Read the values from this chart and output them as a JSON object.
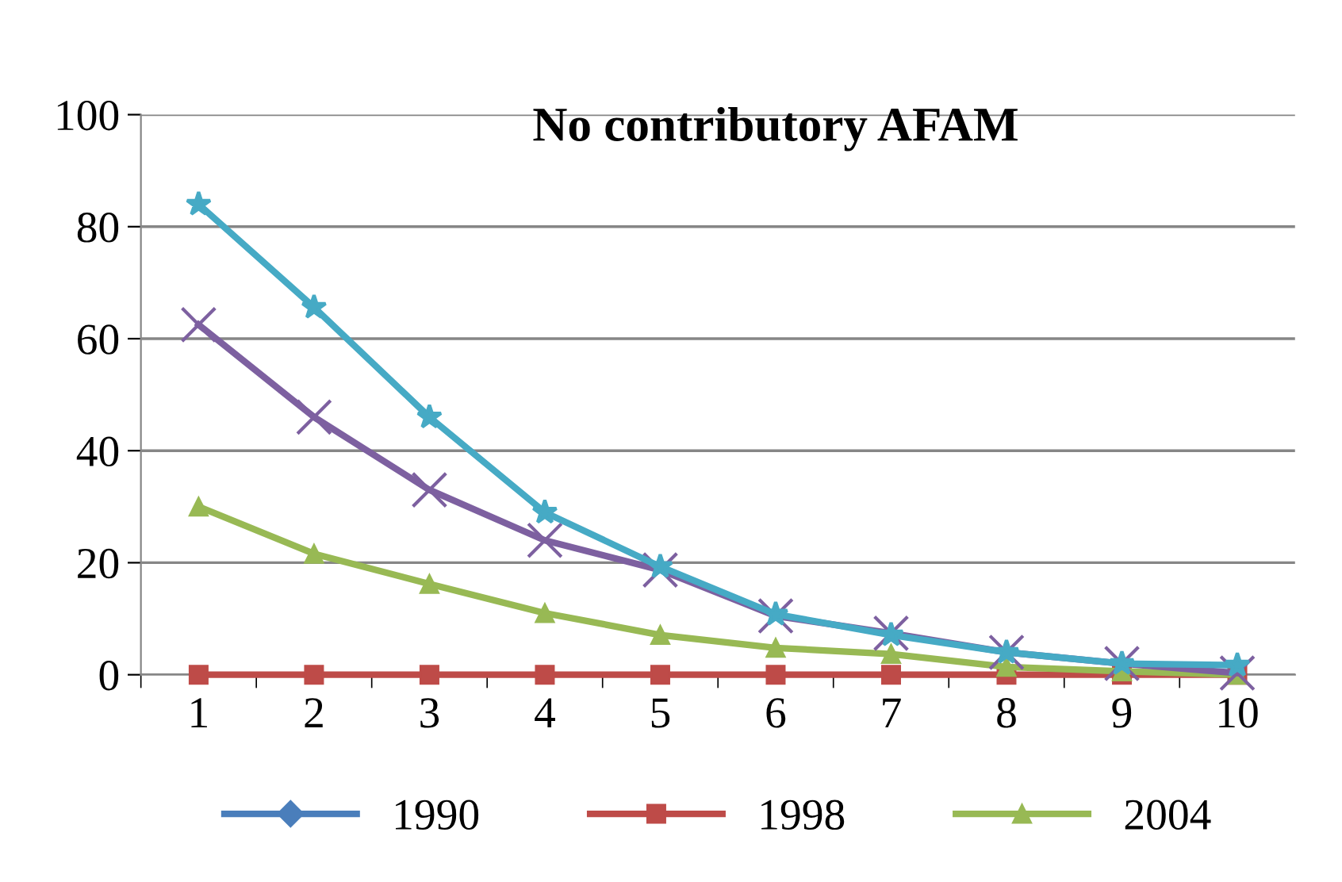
{
  "chart_data": {
    "type": "line",
    "title": "No contributory AFAM",
    "categories": [
      "1",
      "2",
      "3",
      "4",
      "5",
      "6",
      "7",
      "8",
      "9",
      "10"
    ],
    "series": [
      {
        "name": "1990",
        "color": "#4a7ebb",
        "marker": "diamond",
        "values": [
          null,
          null,
          null,
          null,
          null,
          null,
          null,
          null,
          null,
          null
        ]
      },
      {
        "name": "1998",
        "color": "#be4b48",
        "marker": "square",
        "values": [
          0,
          0,
          0,
          0,
          0,
          0,
          0,
          0,
          0,
          0
        ]
      },
      {
        "name": "2004",
        "color": "#98b954",
        "marker": "triangle",
        "values": [
          30,
          21.6,
          16.2,
          11,
          7.1,
          4.8,
          3.7,
          1.4,
          0.6,
          0
        ]
      },
      {
        "color": "#7d60a0",
        "marker": "cross",
        "values": [
          62.5,
          46,
          33,
          24,
          18.7,
          10.5,
          7.4,
          4,
          2,
          0.3
        ]
      },
      {
        "color": "#46aac5",
        "marker": "star",
        "values": [
          84,
          65.6,
          46,
          29,
          19.3,
          10.8,
          7.1,
          4,
          2,
          1.7
        ]
      }
    ],
    "ylim": [
      0,
      100
    ],
    "yticks": [
      0,
      20,
      40,
      60,
      80,
      100
    ],
    "grid": "y",
    "legend": "bottom",
    "line_style": "solid"
  }
}
